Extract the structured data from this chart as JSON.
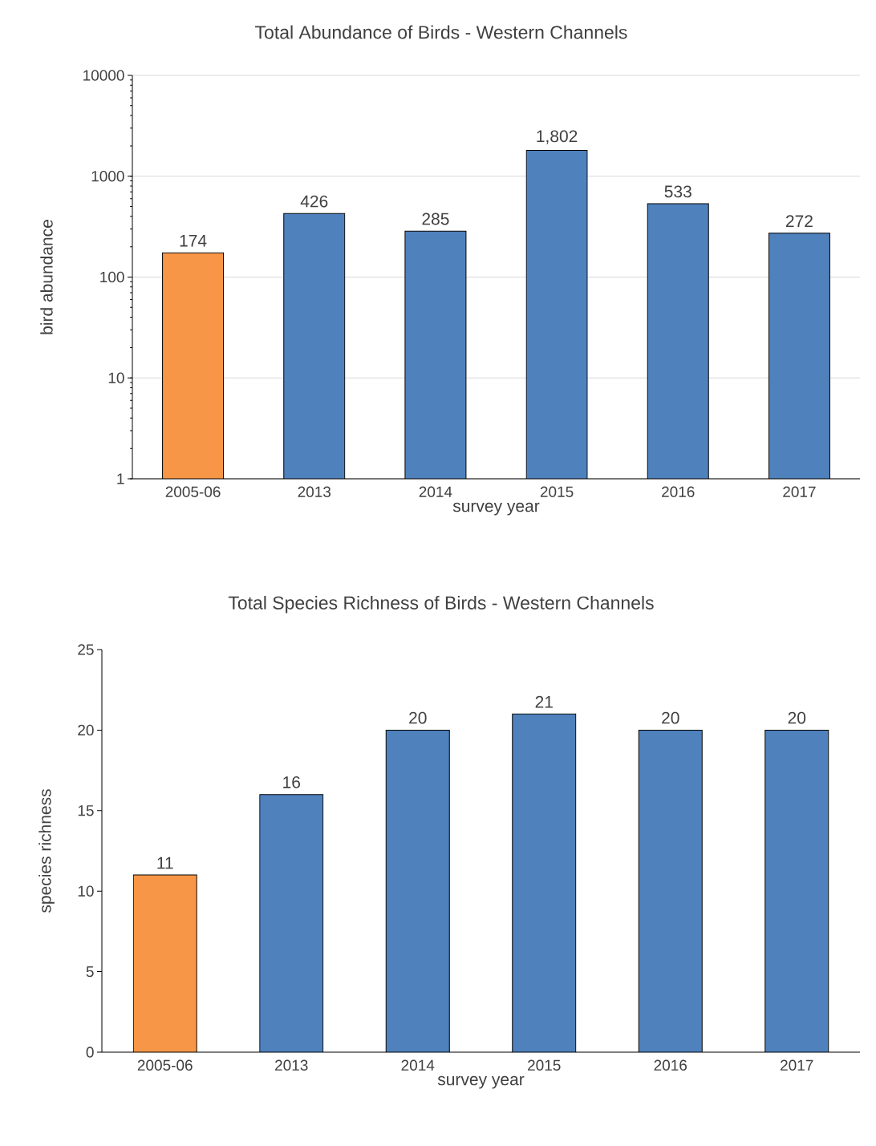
{
  "chart_data": [
    {
      "type": "bar",
      "title": "Total Abundance of Birds - Western Channels",
      "xlabel": "survey year",
      "ylabel": "bird abundance",
      "categories": [
        "2005-06",
        "2013",
        "2014",
        "2015",
        "2016",
        "2017"
      ],
      "values": [
        174,
        426,
        285,
        1802,
        533,
        272
      ],
      "value_labels": [
        "174",
        "426",
        "285",
        "1,802",
        "533",
        "272"
      ],
      "colors": [
        "#f79646",
        "#4f81bd",
        "#4f81bd",
        "#4f81bd",
        "#4f81bd",
        "#4f81bd"
      ],
      "log": "y",
      "ylim": [
        1,
        10000
      ],
      "yticks": [
        1,
        10,
        100,
        1000,
        10000
      ],
      "grid": "y"
    },
    {
      "type": "bar",
      "title": "Total Species Richness of Birds - Western Channels",
      "xlabel": "survey year",
      "ylabel": "species richness",
      "categories": [
        "2005-06",
        "2013",
        "2014",
        "2015",
        "2016",
        "2017"
      ],
      "values": [
        11,
        16,
        20,
        21,
        20,
        20
      ],
      "data_labels": true,
      "colors": [
        "#f79646",
        "#4f81bd",
        "#4f81bd",
        "#4f81bd",
        "#4f81bd",
        "#4f81bd"
      ],
      "ylim": [
        0,
        25
      ],
      "yticks": [
        0,
        5,
        10,
        15,
        20,
        25
      ]
    }
  ]
}
